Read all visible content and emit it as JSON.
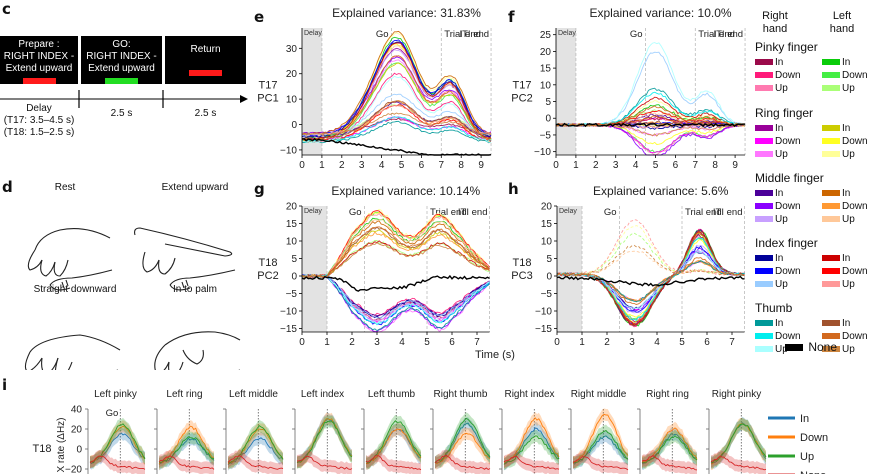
{
  "panels": {
    "c": {
      "label": "c",
      "cues": [
        {
          "text1": "Prepare :",
          "text2": "RIGHT INDEX -",
          "text3": "Extend upward",
          "bar_color": "#ff1a1a"
        },
        {
          "text1": "GO:",
          "text2": "RIGHT INDEX -",
          "text3": "Extend upward",
          "bar_color": "#22dd22"
        },
        {
          "text1": "Return",
          "text2": "",
          "text3": "",
          "bar_color": "#ff1a1a"
        }
      ],
      "timeline": {
        "delay_line1": "Delay",
        "delay_line2": "(T17: 3.5–4.5 s)",
        "delay_line3": "(T18: 1.5–2.5 s)",
        "go_duration": "2.5 s",
        "return_duration": "2.5 s"
      }
    },
    "d": {
      "label": "d",
      "postures": [
        "Rest",
        "Extend upward",
        "Straight downward",
        "In to palm"
      ]
    },
    "e": {
      "label": "e"
    },
    "f": {
      "label": "f"
    },
    "g": {
      "label": "g"
    },
    "h": {
      "label": "h"
    },
    "i": {
      "label": "i"
    }
  },
  "legend": {
    "col_right_1": "Right",
    "col_right_2": "hand",
    "col_left_1": "Left",
    "col_left_2": "hand",
    "groups": [
      {
        "name": "Pinky finger",
        "right": [
          {
            "label": "In",
            "color": "#9b0a4a"
          },
          {
            "label": "Down",
            "color": "#ff1a7a"
          },
          {
            "label": "Up",
            "color": "#ff7ab0"
          }
        ],
        "left": [
          {
            "label": "In",
            "color": "#0acc0a"
          },
          {
            "label": "Down",
            "color": "#44ee44"
          },
          {
            "label": "Up",
            "color": "#aaff77"
          }
        ]
      },
      {
        "name": "Ring finger",
        "right": [
          {
            "label": "In",
            "color": "#990099"
          },
          {
            "label": "Down",
            "color": "#ff00ff"
          },
          {
            "label": "Up",
            "color": "#ff77ff"
          }
        ],
        "left": [
          {
            "label": "In",
            "color": "#cccc00"
          },
          {
            "label": "Down",
            "color": "#ffff22"
          },
          {
            "label": "Up",
            "color": "#ffff99"
          }
        ]
      },
      {
        "name": "Middle finger",
        "right": [
          {
            "label": "In",
            "color": "#4b0099"
          },
          {
            "label": "Down",
            "color": "#8a00ff"
          },
          {
            "label": "Up",
            "color": "#c8a0ff"
          }
        ],
        "left": [
          {
            "label": "In",
            "color": "#cc6600"
          },
          {
            "label": "Down",
            "color": "#ff9933"
          },
          {
            "label": "Up",
            "color": "#ffc899"
          }
        ]
      },
      {
        "name": "Index finger",
        "right": [
          {
            "label": "In",
            "color": "#000099"
          },
          {
            "label": "Down",
            "color": "#0000ff"
          },
          {
            "label": "Up",
            "color": "#99ccff"
          }
        ],
        "left": [
          {
            "label": "In",
            "color": "#cc0000"
          },
          {
            "label": "Down",
            "color": "#ff0000"
          },
          {
            "label": "Up",
            "color": "#ff9999"
          }
        ]
      },
      {
        "name": "Thumb",
        "right": [
          {
            "label": "In",
            "color": "#009999"
          },
          {
            "label": "Down",
            "color": "#00eeee"
          },
          {
            "label": "Up",
            "color": "#aaffff"
          }
        ],
        "left": [
          {
            "label": "In",
            "color": "#a0522d"
          },
          {
            "label": "Down",
            "color": "#d2691e"
          },
          {
            "label": "Up",
            "color": "#cd853f"
          }
        ]
      }
    ],
    "none": {
      "label": "None",
      "color": "#000000"
    }
  },
  "chart_data": [
    {
      "id": "e",
      "type": "line",
      "title": "Explained variance: 31.83%",
      "ylabel": "T17\nPC1",
      "xlabel": "",
      "xlim": [
        0,
        9.5
      ],
      "ylim": [
        -12,
        38
      ],
      "xticks": [
        0,
        1,
        2,
        3,
        4,
        5,
        6,
        7,
        8,
        9
      ],
      "yticks": [
        -10,
        0,
        10,
        20,
        30
      ],
      "shaded": {
        "label": "Delay",
        "x": [
          0,
          1
        ]
      },
      "events": [
        {
          "label": "Go",
          "x": 4.5
        },
        {
          "label": "Trial end",
          "x": 7
        },
        {
          "label": "ITI end",
          "x": 9.5
        }
      ],
      "series_summary": "30 conditions + None; peaks near x=5 (up to ~37) and x=7.5 (up to ~22); None trace declines to ~-12",
      "peaks": {
        "x1": 4.9,
        "x2": 7.5,
        "None_level_end": -12
      }
    },
    {
      "id": "f",
      "type": "line",
      "title": "Explained variance: 10.0%",
      "ylabel": "T17\nPC2",
      "xlabel": "",
      "xlim": [
        0,
        9.5
      ],
      "ylim": [
        -11,
        27
      ],
      "xticks": [
        0,
        1,
        2,
        3,
        4,
        5,
        6,
        7,
        8,
        9
      ],
      "yticks": [
        -10,
        -5,
        0,
        5,
        10,
        15,
        20,
        25
      ],
      "shaded": {
        "label": "Delay",
        "x": [
          0,
          1
        ]
      },
      "events": [
        {
          "label": "Go",
          "x": 4.5
        },
        {
          "label": "Trial end",
          "x": 7
        },
        {
          "label": "ITI end",
          "x": 9.5
        }
      ],
      "series_summary": "thumb/index traces peak near x=5 (up to ~26); pinky/ring traces dip to ~-10; None stays near -2",
      "peaks": {
        "x1": 5.0,
        "x2": 7.6,
        "None_level_end": -1.5
      }
    },
    {
      "id": "g",
      "type": "line",
      "title": "Explained variance: 10.14%",
      "ylabel": "T18\nPC2",
      "xlabel": "",
      "xlim": [
        0,
        7.5
      ],
      "ylim": [
        -16,
        20
      ],
      "xticks": [
        0,
        1,
        2,
        3,
        4,
        5,
        6,
        7
      ],
      "yticks": [
        -15,
        -10,
        -5,
        0,
        5,
        10,
        15,
        20
      ],
      "shaded": {
        "label": "Delay",
        "x": [
          0,
          1
        ]
      },
      "events": [
        {
          "label": "Go",
          "x": 2.5
        },
        {
          "label": "Trial end",
          "x": 5
        },
        {
          "label": "ITI end",
          "x": 7.5
        }
      ],
      "series_summary": "left-hand traces rise to ~15-20 at x=3 and x=5.5; right-hand traces fall to ~-15; None near -3",
      "peaks": {
        "x1": 3.0,
        "x2": 5.5,
        "None_level_end": -1
      }
    },
    {
      "id": "h",
      "type": "line",
      "title": "Explained variance: 5.6%",
      "ylabel": "T18\nPC3",
      "xlabel": "Time (s)",
      "xlim": [
        0,
        7.5
      ],
      "ylim": [
        -16,
        20
      ],
      "xticks": [
        0,
        1,
        2,
        3,
        4,
        5,
        6,
        7
      ],
      "yticks": [
        -15,
        -10,
        -5,
        0,
        5,
        10,
        15,
        20
      ],
      "shaded": {
        "label": "Delay",
        "x": [
          0,
          1
        ]
      },
      "events": [
        {
          "label": "Go",
          "x": 2.5
        },
        {
          "label": "Trial end",
          "x": 5
        },
        {
          "label": "ITI end",
          "x": 7.5
        }
      ],
      "series_summary": "solid traces dip to ~-15 at x=3 then rebound to ~13 at x=5.7; dashed traces rise to ~20 at x=2.5-3",
      "peaks": {
        "x1": 3.1,
        "x2": 5.7,
        "None_level_end": -1.5
      }
    },
    {
      "id": "i",
      "type": "line",
      "ylabel": "X rate (ΔHz)",
      "row_label": "T18",
      "ylim": [
        -22,
        40
      ],
      "yticks": [
        -20,
        0,
        20,
        40
      ],
      "go_annotation": "Go",
      "subplots": [
        "Left pinky",
        "Left ring",
        "Left middle",
        "Left index",
        "Left thumb",
        "Right thumb",
        "Right index",
        "Right middle",
        "Right ring",
        "Right pinky"
      ],
      "legend": [
        {
          "label": "In",
          "color": "#1f77b4"
        },
        {
          "label": "Down",
          "color": "#ff7f0e"
        },
        {
          "label": "Up",
          "color": "#2ca02c"
        },
        {
          "label": "None",
          "color": "#d62728"
        }
      ],
      "peak_values": {
        "In": [
          15,
          10,
          10,
          30,
          20,
          25,
          20,
          12,
          15,
          25
        ],
        "Down": [
          22,
          22,
          20,
          30,
          20,
          15,
          30,
          35,
          20,
          25
        ],
        "Up": [
          24,
          12,
          22,
          28,
          28,
          30,
          12,
          18,
          12,
          25
        ],
        "None": [
          -20,
          -20,
          -20,
          -18,
          -18,
          -18,
          -20,
          -20,
          -20,
          -20
        ]
      }
    }
  ]
}
